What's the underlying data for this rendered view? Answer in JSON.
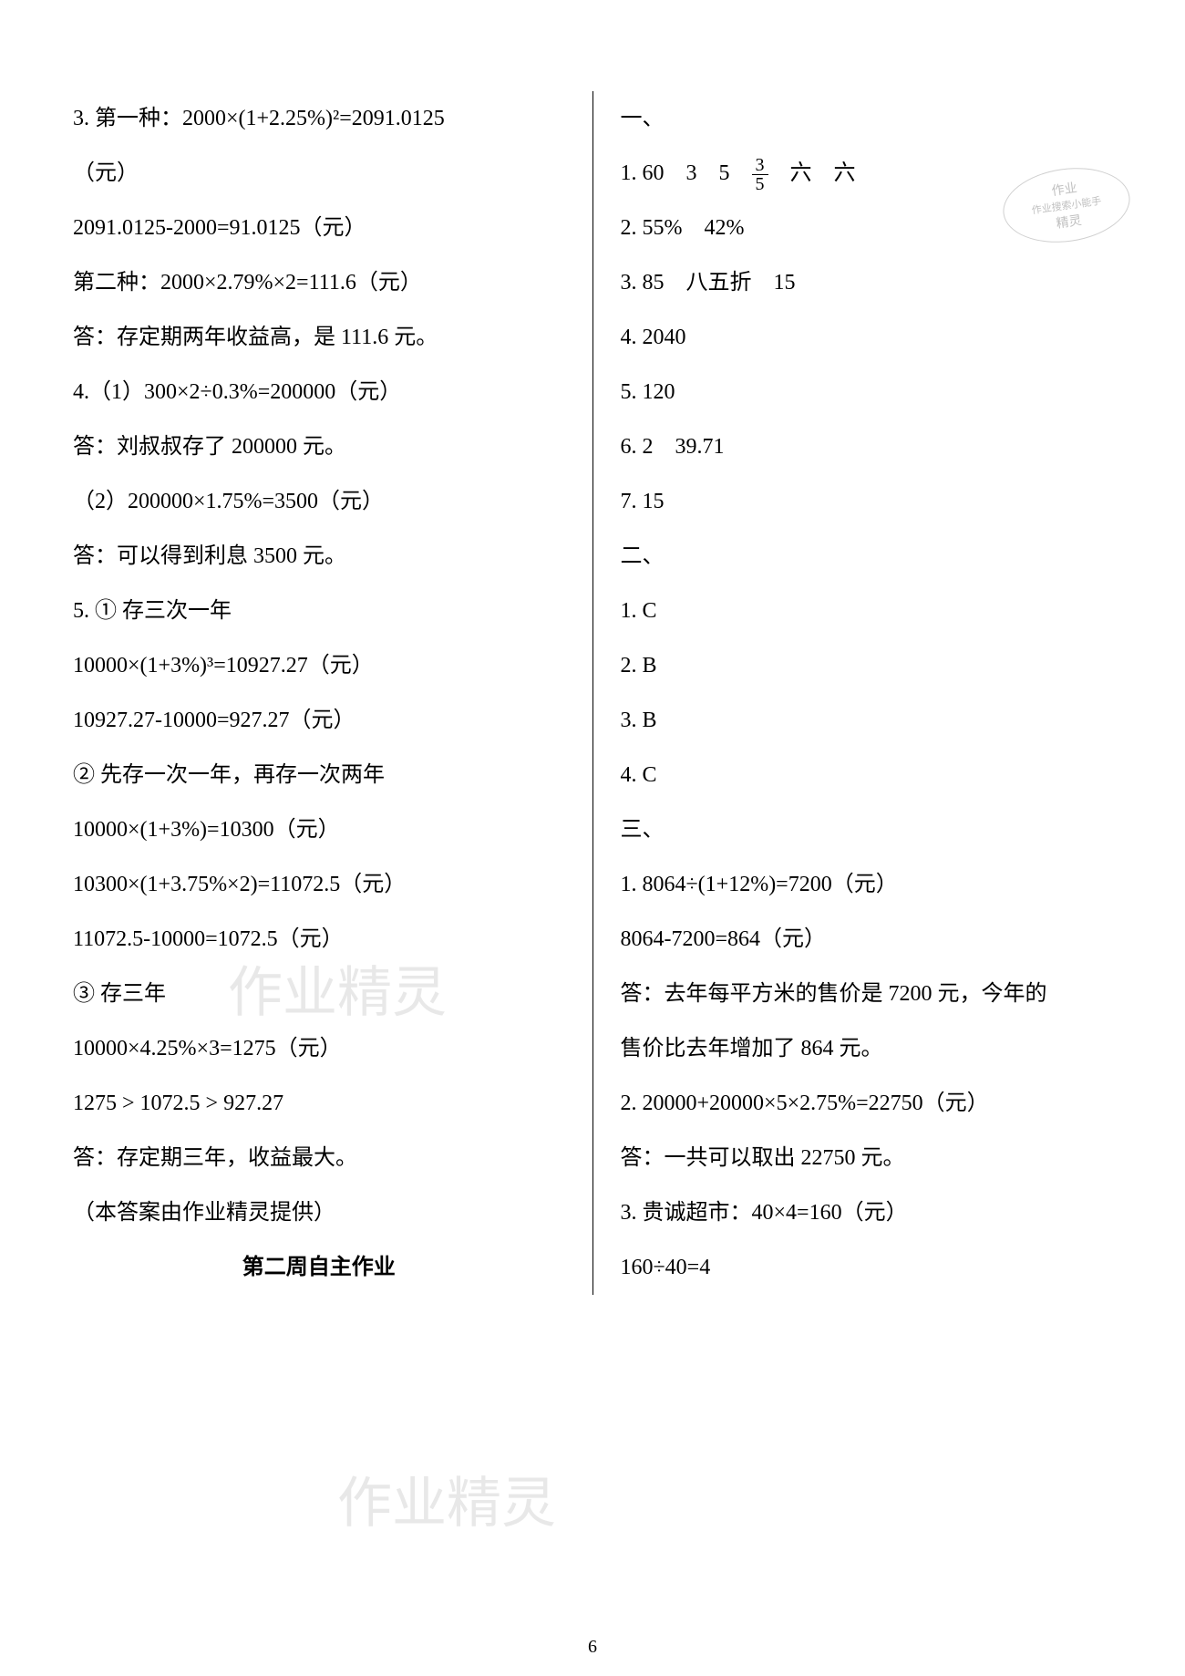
{
  "colors": {
    "background": "#ffffff",
    "text": "#000000",
    "watermark": "#e8e8e8",
    "stamp_border": "#d0d0d0",
    "stamp_text": "#c0c0c0"
  },
  "typography": {
    "body_fontsize": 24,
    "line_height": 60,
    "heading_fontsize": 24,
    "page_number_fontsize": 20
  },
  "left": {
    "l1": "3. 第一种：2000×(1+2.25%)²=2091.0125",
    "l2": "（元）",
    "l3": "2091.0125-2000=91.0125（元）",
    "l4": "第二种：2000×2.79%×2=111.6（元）",
    "l5": "答：存定期两年收益高，是 111.6 元。",
    "l6": "4.（1）300×2÷0.3%=200000（元）",
    "l7": "答：刘叔叔存了 200000 元。",
    "l8": "（2）200000×1.75%=3500（元）",
    "l9": "答：可以得到利息 3500 元。",
    "l10": "5. ① 存三次一年",
    "l11": "10000×(1+3%)³=10927.27（元）",
    "l12": "10927.27-10000=927.27（元）",
    "l13": "② 先存一次一年，再存一次两年",
    "l14": "10000×(1+3%)=10300（元）",
    "l15": "10300×(1+3.75%×2)=11072.5（元）",
    "l16": "11072.5-10000=1072.5（元）",
    "l17": "③ 存三年",
    "l18": "10000×4.25%×3=1275（元）",
    "l19": "1275 > 1072.5 > 927.27",
    "l20": "答：存定期三年，收益最大。",
    "l21": "（本答案由作业精灵提供）",
    "heading": "第二周自主作业"
  },
  "right": {
    "l1": "一、",
    "l2_pre": "1. 60　3　5　",
    "l2_frac_num": "3",
    "l2_frac_den": "5",
    "l2_post": "　六　六",
    "l3": "2. 55%　42%",
    "l4": "3. 85　八五折　15",
    "l5": "4. 2040",
    "l6": "5. 120",
    "l7": "6. 2　39.71",
    "l8": "7. 15",
    "l9": "二、",
    "l10": "1. C",
    "l11": "2. B",
    "l12": "3. B",
    "l13": "4. C",
    "l14": "三、",
    "l15": "1. 8064÷(1+12%)=7200（元）",
    "l16": "8064-7200=864（元）",
    "l17": "答：去年每平方米的售价是 7200 元，今年的",
    "l18": "售价比去年增加了 864 元。",
    "l19": "2. 20000+20000×5×2.75%=22750（元）",
    "l20": "答：一共可以取出 22750 元。",
    "l21": "3. 贵诚超市：40×4=160（元）",
    "l22": "160÷40=4"
  },
  "page_number": "6",
  "watermark_text": "作业精灵",
  "stamp": {
    "line1": "作业",
    "line2": "作业搜索小能手",
    "line3": "精灵"
  }
}
